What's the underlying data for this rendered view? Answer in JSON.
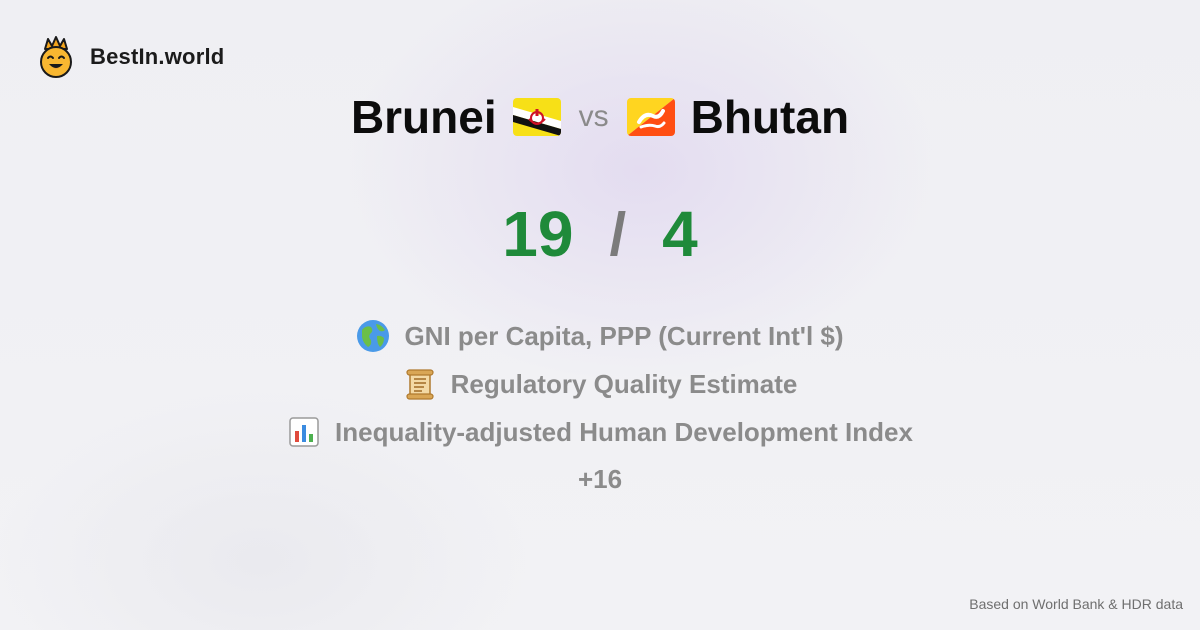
{
  "brand": {
    "name": "BestIn.world",
    "logo_icon": "crowned-smiley-logo"
  },
  "comparison": {
    "country_a": {
      "name": "Brunei",
      "flag_icon": "brunei-flag-icon"
    },
    "vs_label": "vs",
    "country_b": {
      "name": "Bhutan",
      "flag_icon": "bhutan-flag-icon"
    }
  },
  "score": {
    "a": "19",
    "separator": "/",
    "b": "4",
    "color": "#1f8a3a"
  },
  "metrics": [
    {
      "icon": "globe-icon",
      "label": "GNI per Capita, PPP (Current Int'l $)"
    },
    {
      "icon": "scroll-icon",
      "label": "Regulatory Quality Estimate"
    },
    {
      "icon": "bar-chart-icon",
      "label": "Inequality-adjusted Human Development Index"
    }
  ],
  "more_count": "+16",
  "footer": {
    "source_text": "Based on World Bank & HDR data"
  }
}
